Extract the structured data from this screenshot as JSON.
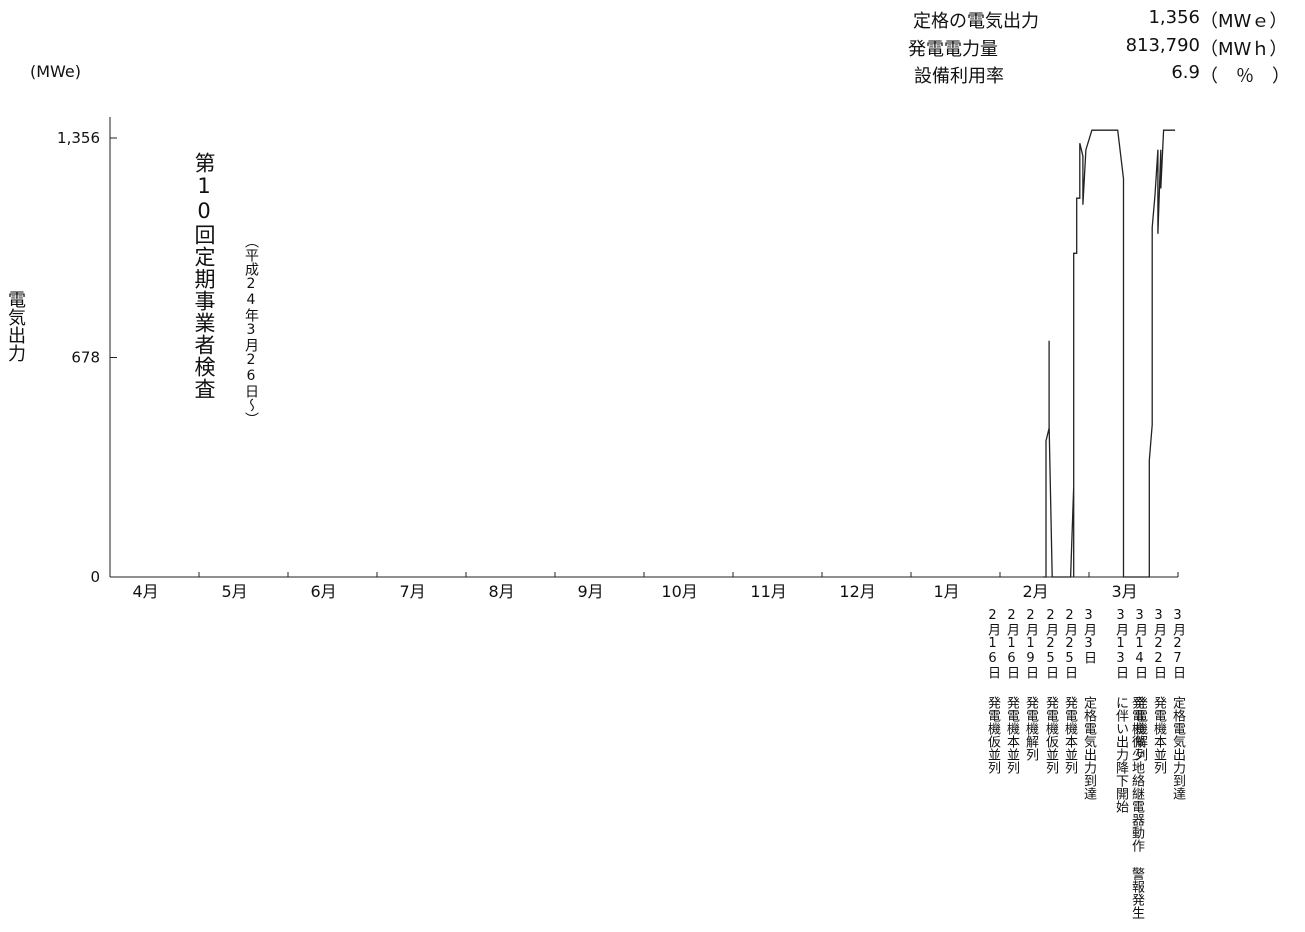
{
  "summary": {
    "rows": [
      {
        "label": "定格の電気出力",
        "value": "1,356",
        "unit": "（MWｅ）"
      },
      {
        "label": "発電電力量",
        "value": "813,790",
        "unit": "（MWｈ）"
      },
      {
        "label": "設備利用率",
        "value": "6.9",
        "unit": "（　％　）"
      }
    ]
  },
  "y_unit": "(MWe)",
  "y_axis_title": "電気出力",
  "inspection": {
    "main": "第10回定期事業者検査",
    "sub": "（平成24年3月26日～）"
  },
  "chart_data": {
    "type": "line",
    "title": "",
    "ylabel": "電気出力",
    "y_unit": "MWe",
    "ylim": [
      0,
      1356
    ],
    "yticks": [
      0,
      678,
      1356
    ],
    "ytick_labels": [
      "0",
      "678",
      "1,356"
    ],
    "months": [
      "4月",
      "5月",
      "6月",
      "7月",
      "8月",
      "9月",
      "10月",
      "11月",
      "12月",
      "1月",
      "2月",
      "3月"
    ],
    "series": [
      {
        "values_note": "",
        "points": [
          {
            "x": "2/15",
            "y": 0
          },
          {
            "x": "2/16",
            "y": 0
          },
          {
            "x": "2/16",
            "y": 280
          },
          {
            "x": "2/16",
            "y": 0
          },
          {
            "x": "2/16",
            "y": 420
          },
          {
            "x": "2/17",
            "y": 460
          },
          {
            "x": "2/17",
            "y": 730
          },
          {
            "x": "2/17",
            "y": 470
          },
          {
            "x": "2/18",
            "y": 0
          },
          {
            "x": "2/24",
            "y": 0
          },
          {
            "x": "2/25",
            "y": 280
          },
          {
            "x": "2/25",
            "y": 0
          },
          {
            "x": "2/25",
            "y": 1000
          },
          {
            "x": "2/26",
            "y": 1000
          },
          {
            "x": "2/26",
            "y": 1170
          },
          {
            "x": "2/27",
            "y": 1170
          },
          {
            "x": "2/27",
            "y": 1340
          },
          {
            "x": "2/28",
            "y": 1300
          },
          {
            "x": "2/28",
            "y": 1150
          },
          {
            "x": "2/29",
            "y": 1320
          },
          {
            "x": "3/2",
            "y": 1380
          },
          {
            "x": "3/11",
            "y": 1380
          },
          {
            "x": "3/13",
            "y": 1230
          },
          {
            "x": "3/13",
            "y": 0
          },
          {
            "x": "3/22",
            "y": 0
          },
          {
            "x": "3/22",
            "y": 360
          },
          {
            "x": "3/23",
            "y": 470
          },
          {
            "x": "3/23",
            "y": 1080
          },
          {
            "x": "3/24",
            "y": 1180
          },
          {
            "x": "3/25",
            "y": 1320
          },
          {
            "x": "3/25",
            "y": 1060
          },
          {
            "x": "3/26",
            "y": 1320
          },
          {
            "x": "3/26",
            "y": 1200
          },
          {
            "x": "3/27",
            "y": 1380
          },
          {
            "x": "3/31",
            "y": 1380
          }
        ]
      }
    ],
    "grid": false,
    "legend": "none"
  },
  "events": [
    {
      "date": "2月16日",
      "text": "発電機仮並列"
    },
    {
      "date": "2月16日",
      "text": "発電機本並列"
    },
    {
      "date": "2月19日",
      "text": "発電機解列"
    },
    {
      "date": "2月25日",
      "text": "発電機仮並列"
    },
    {
      "date": "2月25日",
      "text": "発電機本並列"
    },
    {
      "date": "3月3日",
      "text": "定格電気出力到達"
    },
    {
      "date": "3月13日",
      "text": "発電機微少地絡継電器動作 警報発生に伴い出力降下開始"
    },
    {
      "date": "3月14日",
      "text": "発電機解列"
    },
    {
      "date": "3月22日",
      "text": "発電機本並列"
    },
    {
      "date": "3月27日",
      "text": "定格電気出力到達"
    }
  ]
}
